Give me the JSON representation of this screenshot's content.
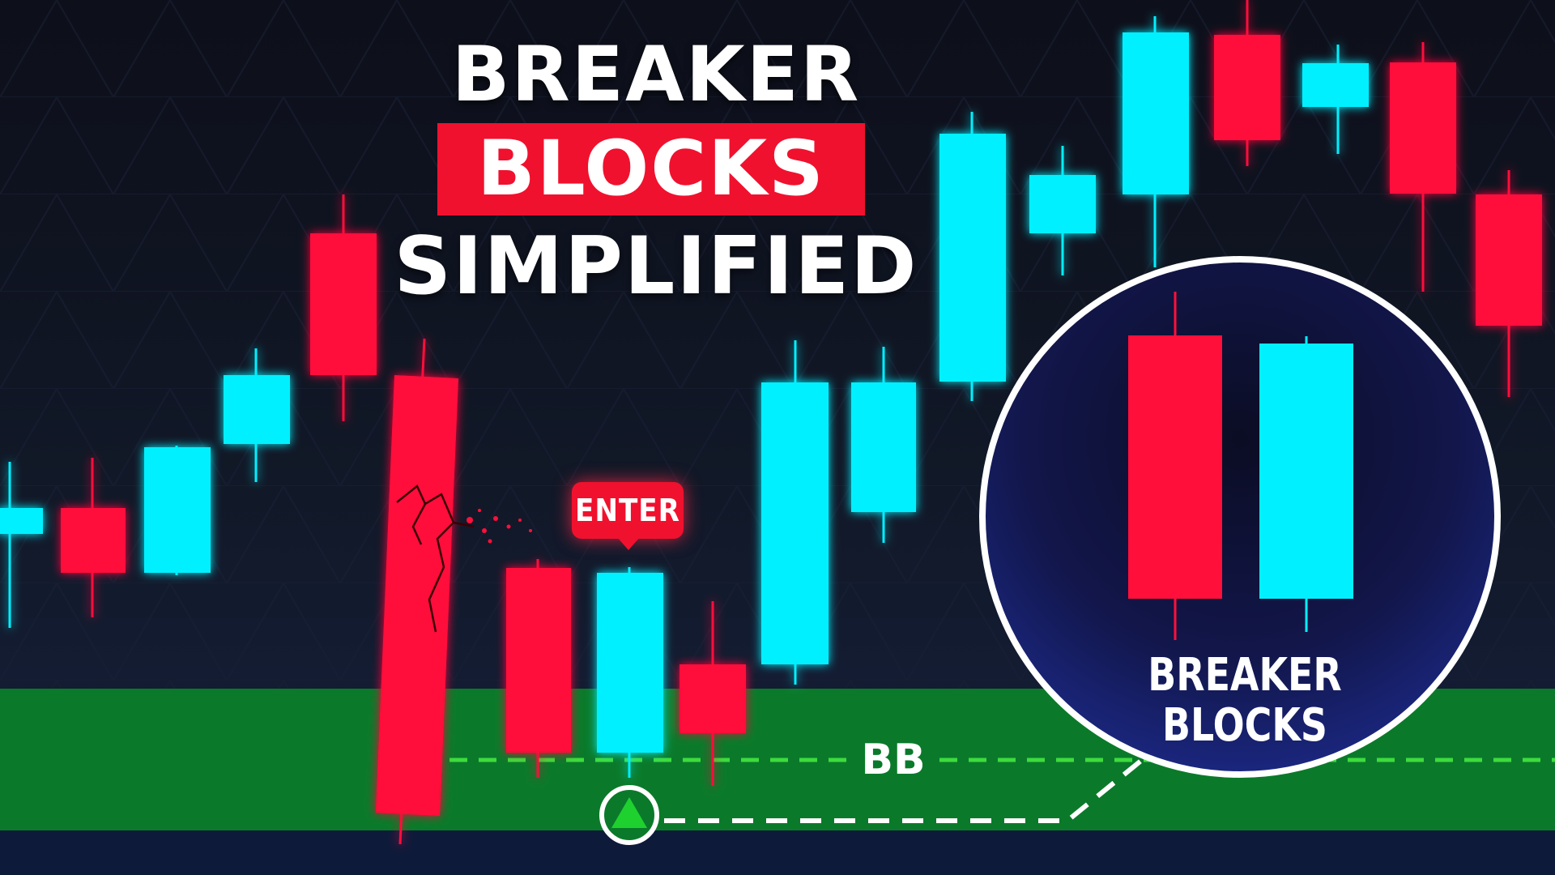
{
  "title": {
    "line1": "BREAKER",
    "line2": "BLOCKS",
    "line3": "SIMPLIFIED"
  },
  "annotations": {
    "enter_label": "ENTER",
    "zone_label": "BB",
    "zoom_label_line1": "BREAKER",
    "zoom_label_line2": "BLOCKS"
  },
  "colors": {
    "bullish": "#00f0ff",
    "bearish": "#ff0f3a",
    "zone": "#0a7a2a",
    "dashed_line": "#3ddc3d",
    "highlight": "#f0112e",
    "entry_marker": "#1fd12f"
  },
  "icons": [
    "up-triangle-entry-icon",
    "crack-icon"
  ]
}
